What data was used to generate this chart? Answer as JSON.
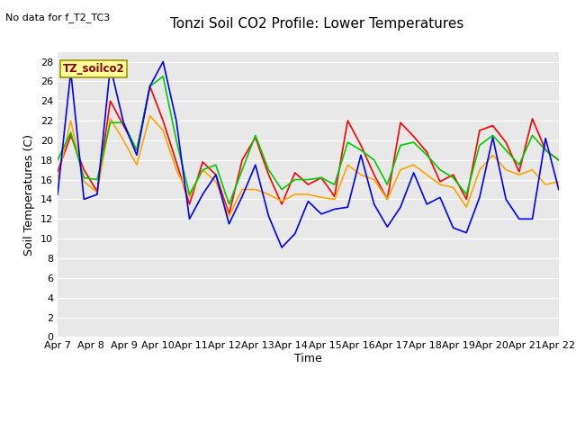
{
  "title": "Tonzi Soil CO2 Profile: Lower Temperatures",
  "subtitle": "No data for f_T2_TC3",
  "ylabel": "Soil Temperatures (C)",
  "xlabel": "Time",
  "legend_label": "TZ_soilco2",
  "fig_bg_color": "#ffffff",
  "plot_bg_color": "#e8e8e8",
  "ylim": [
    0,
    29
  ],
  "yticks": [
    0,
    2,
    4,
    6,
    8,
    10,
    12,
    14,
    16,
    18,
    20,
    22,
    24,
    26,
    28
  ],
  "x_labels": [
    "Apr 7",
    "Apr 8",
    "Apr 9",
    "Apr 10",
    "Apr 11",
    "Apr 12",
    "Apr 13",
    "Apr 14",
    "Apr 15",
    "Apr 16",
    "Apr 17",
    "Apr 18",
    "Apr 19",
    "Apr 20",
    "Apr 21",
    "Apr 22"
  ],
  "series": {
    "open_8cm": {
      "color": "#ff0000",
      "values": [
        16.8,
        20.5,
        17.0,
        14.8,
        24.0,
        21.5,
        19.0,
        25.5,
        22.0,
        17.8,
        13.5,
        17.8,
        16.5,
        12.5,
        18.0,
        20.3,
        16.5,
        13.5,
        16.7,
        15.5,
        16.2,
        14.3,
        22.0,
        19.5,
        16.5,
        14.0,
        21.8,
        20.4,
        18.8,
        15.8,
        16.5,
        14.0,
        21.0,
        21.5,
        19.8,
        16.8,
        22.2,
        19.0,
        18.0
      ]
    },
    "tree_8cm": {
      "color": "#ffa500",
      "values": [
        16.0,
        22.0,
        15.8,
        14.7,
        22.2,
        20.0,
        17.5,
        22.5,
        21.0,
        17.0,
        14.3,
        17.0,
        15.8,
        12.3,
        15.0,
        15.0,
        14.5,
        13.8,
        14.5,
        14.5,
        14.2,
        14.0,
        17.5,
        16.5,
        16.0,
        14.0,
        17.0,
        17.5,
        16.5,
        15.5,
        15.2,
        13.2,
        17.0,
        18.5,
        17.0,
        16.5,
        17.0,
        15.5,
        15.8
      ]
    },
    "open_16cm": {
      "color": "#00cc00",
      "values": [
        18.0,
        20.8,
        16.2,
        16.0,
        21.8,
        21.8,
        19.0,
        25.5,
        26.5,
        20.0,
        14.5,
        17.0,
        17.5,
        13.5,
        17.0,
        20.5,
        17.0,
        15.0,
        16.0,
        16.0,
        16.2,
        15.5,
        19.8,
        19.0,
        18.0,
        15.5,
        19.5,
        19.8,
        18.5,
        17.0,
        16.2,
        14.5,
        19.5,
        20.5,
        19.0,
        17.5,
        20.5,
        19.0,
        18.0
      ]
    },
    "tree_16cm": {
      "color": "#0000ff",
      "values": [
        14.5,
        27.0,
        14.0,
        14.5,
        27.5,
        21.8,
        18.5,
        25.5,
        28.0,
        22.0,
        12.0,
        14.5,
        16.5,
        11.5,
        14.3,
        17.5,
        12.3,
        9.1,
        10.5,
        13.8,
        12.5,
        13.0,
        13.2,
        18.5,
        13.5,
        11.2,
        13.2,
        16.7,
        13.5,
        14.2,
        11.1,
        10.6,
        14.2,
        20.3,
        14.0,
        12.0,
        12.0,
        20.2,
        15.0
      ]
    }
  }
}
